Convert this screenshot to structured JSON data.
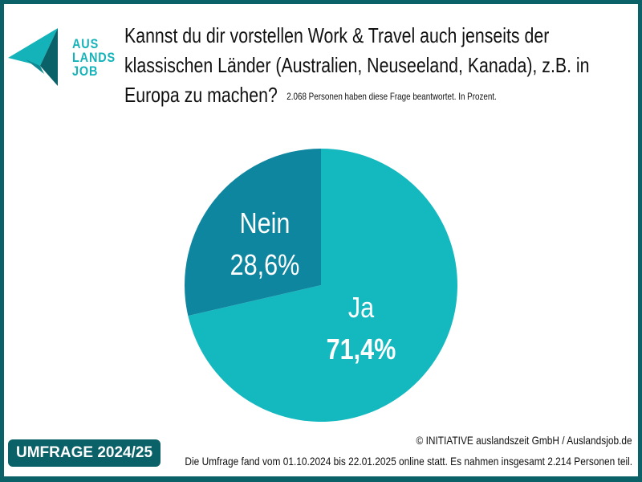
{
  "logo": {
    "lines": [
      "AUS",
      "LANDS",
      "JOB"
    ]
  },
  "title": {
    "lines": [
      "Kannst du dir vorstellen Work & Travel auch jenseits der",
      "klassischen Länder (Australien, Neuseeland, Kanada), z.B. in",
      "Europa zu machen?"
    ],
    "subtitle": "2.068 Personen haben diese Frage beantwortet. In Prozent."
  },
  "colors": {
    "frame": "#0b6168",
    "ja": "#14b8bf",
    "nein": "#0f86a0"
  },
  "chart_data": {
    "type": "pie",
    "unit": "%",
    "slices": [
      {
        "label": "Ja",
        "value": 71.4,
        "display": "71,4%",
        "color": "#14b8bf"
      },
      {
        "label": "Nein",
        "value": 28.6,
        "display": "28,6%",
        "color": "#0f86a0"
      }
    ]
  },
  "footer": {
    "badge": "UMFRAGE 2024/25",
    "copyright": "© INITIATIVE auslandszeit GmbH / Auslandsjob.de",
    "note": "Die Umfrage fand vom 01.10.2024 bis 22.01.2025 online statt. Es nahmen insgesamt 2.214 Personen teil."
  }
}
